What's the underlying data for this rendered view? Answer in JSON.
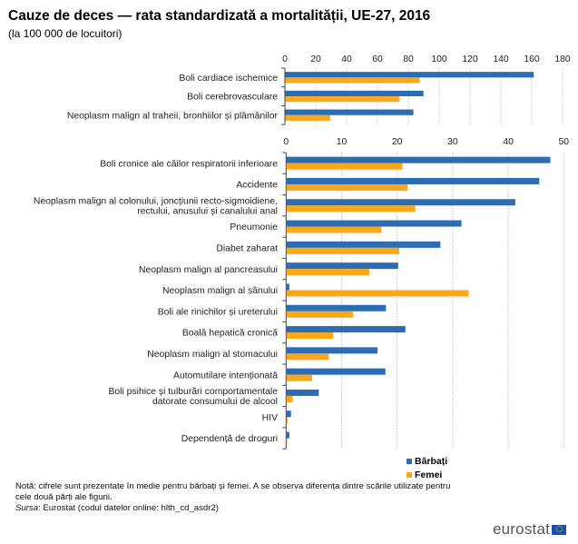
{
  "header": {
    "title": "Cauze de deces — rata standardizată a mortalității, UE-27, 2016",
    "subtitle": "(la 100 000 de locuitori)"
  },
  "colors": {
    "barbati": "#2b6cb3",
    "femei": "#f9a81c",
    "grid": "#d0d0d0",
    "axis": "#404040"
  },
  "legend": {
    "items": [
      {
        "label": "Bărbați",
        "color": "#2b6cb3"
      },
      {
        "label": "Femei",
        "color": "#f9a81c"
      }
    ],
    "placement": "bottom-right"
  },
  "footer": {
    "note_line1": "Notă: cifrele sunt prezentate în medie pentru bărbați și femei. A se observa diferența dintre scările utilizate pentru",
    "note_line2": "cele două părți ale figurii.",
    "source_label": "Sursa",
    "source_text": ": Eurostat (codul datelor online: hlth_cd_asdr2)",
    "logo_text": "eurostat"
  },
  "chart_data": [
    {
      "type": "bar",
      "orientation": "horizontal",
      "title": "Cauze de deces — rata standardizată a mortalității, UE-27, 2016",
      "subtitle": "(la 100 000 de locuitori)",
      "xlim": [
        0,
        180
      ],
      "xticks": [
        0,
        20,
        40,
        60,
        80,
        100,
        120,
        140,
        160,
        180
      ],
      "grid": true,
      "categories": [
        [
          "Boli cardiace ischemice"
        ],
        [
          "Boli cerebrovasculare"
        ],
        [
          "Neoplasm malign al traheii, bronhiilor  și plămânilor"
        ]
      ],
      "series": [
        {
          "name": "Bărbați",
          "values": [
            161,
            89.5,
            83
          ]
        },
        {
          "name": "Femei",
          "values": [
            87,
            74,
            29
          ]
        }
      ]
    },
    {
      "type": "bar",
      "orientation": "horizontal",
      "xlim": [
        0,
        50
      ],
      "xticks": [
        0,
        10,
        20,
        30,
        40,
        50
      ],
      "grid": true,
      "categories": [
        [
          "Boli cronice ale căilor respiratorii inferioare"
        ],
        [
          "Accidente"
        ],
        [
          "Neoplasm malign al colonului,  joncțiunii  recto-sigmoidiene,",
          "rectului,  anusului  și canalului  anal"
        ],
        [
          "Pneumonie"
        ],
        [
          "Diabet zaharat"
        ],
        [
          "Neoplasm malign al pancreasului"
        ],
        [
          "Neoplasm malign al sânului"
        ],
        [
          "Boli ale rinichilor și ureterului"
        ],
        [
          "Boală hepatică cronică"
        ],
        [
          "Neoplasm malign al stomacului"
        ],
        [
          "Automutilare  intenționată"
        ],
        [
          "Boli psihice și tulburări  comportamentale",
          "datorate consumului  de alcool"
        ],
        [
          "HIV"
        ],
        [
          "Dependență de droguri"
        ]
      ],
      "series": [
        {
          "name": "Bărbați",
          "values": [
            47.5,
            45.5,
            41.2,
            31.5,
            27.7,
            20.1,
            0.5,
            17.9,
            21.4,
            16.4,
            17.8,
            5.8,
            0.8,
            0.5
          ]
        },
        {
          "name": "Femei",
          "values": [
            20.9,
            21.8,
            23.2,
            17.1,
            20.3,
            14.9,
            32.8,
            12.0,
            8.4,
            7.6,
            4.6,
            1.1,
            0.2,
            0.1
          ]
        }
      ]
    }
  ]
}
